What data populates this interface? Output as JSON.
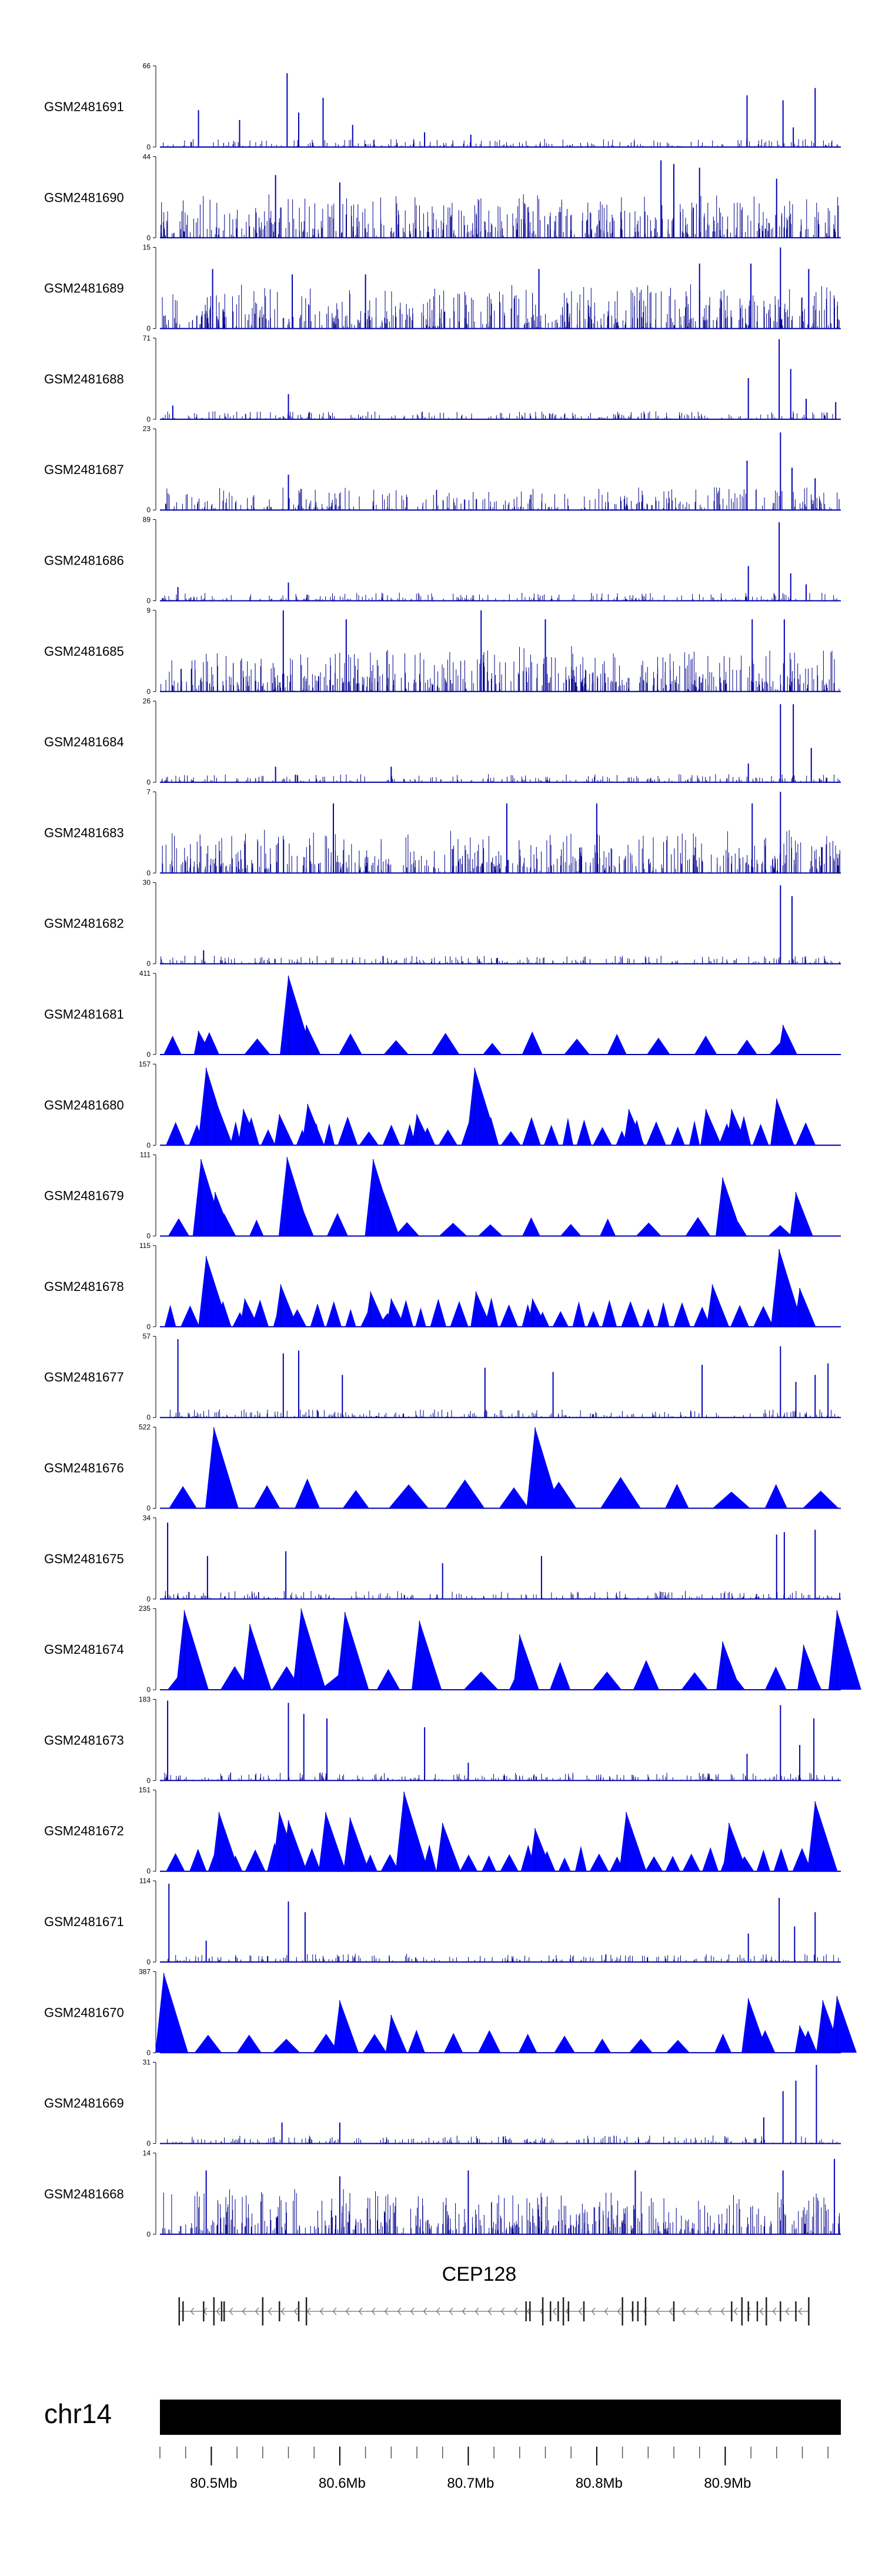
{
  "chart_data": {
    "type": "area",
    "title": "",
    "region": {
      "chromosome": "chr14",
      "start_mb": 80.46,
      "end_mb": 80.99
    },
    "series_color": "#0000ff",
    "tracks": [
      {
        "name": "GSM2481691",
        "ymax": 66,
        "ymin": 0,
        "style": "spiky",
        "density": "sparse",
        "peaks": [
          [
            80.49,
            30
          ],
          [
            80.522,
            22
          ],
          [
            80.559,
            60
          ],
          [
            80.568,
            28
          ],
          [
            80.587,
            40
          ],
          [
            80.61,
            18
          ],
          [
            80.666,
            12
          ],
          [
            80.702,
            10
          ],
          [
            80.917,
            42
          ],
          [
            80.945,
            38
          ],
          [
            80.953,
            16
          ],
          [
            80.97,
            48
          ]
        ]
      },
      {
        "name": "GSM2481690",
        "ymax": 44,
        "ymin": 0,
        "style": "spiky",
        "density": "dense",
        "peaks": [
          [
            80.55,
            34
          ],
          [
            80.6,
            30
          ],
          [
            80.85,
            42
          ],
          [
            80.86,
            40
          ],
          [
            80.88,
            38
          ],
          [
            80.94,
            32
          ]
        ]
      },
      {
        "name": "GSM2481689",
        "ymax": 15,
        "ymin": 0,
        "style": "spiky",
        "density": "dense",
        "peaks": [
          [
            80.501,
            11
          ],
          [
            80.563,
            10
          ],
          [
            80.62,
            10
          ],
          [
            80.755,
            11
          ],
          [
            80.88,
            12
          ],
          [
            80.92,
            12
          ],
          [
            80.943,
            15
          ],
          [
            80.965,
            11
          ]
        ]
      },
      {
        "name": "GSM2481688",
        "ymax": 71,
        "ymin": 0,
        "style": "spiky",
        "density": "sparse",
        "peaks": [
          [
            80.47,
            12
          ],
          [
            80.56,
            22
          ],
          [
            80.918,
            36
          ],
          [
            80.942,
            70
          ],
          [
            80.951,
            44
          ],
          [
            80.963,
            18
          ],
          [
            80.986,
            15
          ]
        ]
      },
      {
        "name": "GSM2481687",
        "ymax": 23,
        "ymin": 0,
        "style": "spiky",
        "density": "medium",
        "peaks": [
          [
            80.56,
            10
          ],
          [
            80.917,
            14
          ],
          [
            80.943,
            22
          ],
          [
            80.952,
            12
          ],
          [
            80.97,
            9
          ]
        ]
      },
      {
        "name": "GSM2481686",
        "ymax": 89,
        "ymin": 0,
        "style": "spiky",
        "density": "sparse",
        "peaks": [
          [
            80.474,
            15
          ],
          [
            80.56,
            20
          ],
          [
            80.918,
            38
          ],
          [
            80.942,
            86
          ],
          [
            80.951,
            30
          ],
          [
            80.963,
            18
          ]
        ]
      },
      {
        "name": "GSM2481685",
        "ymax": 9,
        "ymin": 0,
        "style": "spiky",
        "density": "dense",
        "peaks": [
          [
            80.556,
            9
          ],
          [
            80.605,
            8
          ],
          [
            80.71,
            9
          ],
          [
            80.76,
            8
          ],
          [
            80.921,
            8
          ],
          [
            80.946,
            8
          ]
        ]
      },
      {
        "name": "GSM2481684",
        "ymax": 26,
        "ymin": 0,
        "style": "spiky",
        "density": "sparse",
        "peaks": [
          [
            80.55,
            5
          ],
          [
            80.64,
            5
          ],
          [
            80.918,
            6
          ],
          [
            80.943,
            25
          ],
          [
            80.953,
            25
          ],
          [
            80.967,
            11
          ]
        ]
      },
      {
        "name": "GSM2481683",
        "ymax": 7,
        "ymin": 0,
        "style": "spiky",
        "density": "dense",
        "peaks": [
          [
            80.595,
            6
          ],
          [
            80.73,
            6
          ],
          [
            80.8,
            6
          ],
          [
            80.921,
            6
          ],
          [
            80.943,
            7
          ]
        ]
      },
      {
        "name": "GSM2481682",
        "ymax": 30,
        "ymin": 0,
        "style": "spiky",
        "density": "sparse",
        "peaks": [
          [
            80.494,
            5
          ],
          [
            80.943,
            29
          ],
          [
            80.952,
            25
          ]
        ]
      },
      {
        "name": "GSM2481681",
        "ymax": 411,
        "ymin": 0,
        "style": "triangles",
        "density": "medium",
        "peaks": [
          [
            80.49,
            120
          ],
          [
            80.56,
            400
          ],
          [
            80.574,
            150
          ],
          [
            80.945,
            150
          ]
        ]
      },
      {
        "name": "GSM2481680",
        "ymax": 157,
        "ymin": 0,
        "style": "triangles",
        "density": "dense",
        "peaks": [
          [
            80.496,
            150
          ],
          [
            80.503,
            90
          ],
          [
            80.525,
            70
          ],
          [
            80.553,
            60
          ],
          [
            80.575,
            80
          ],
          [
            80.66,
            60
          ],
          [
            80.705,
            150
          ],
          [
            80.825,
            70
          ],
          [
            80.885,
            70
          ],
          [
            80.905,
            70
          ],
          [
            80.94,
            90
          ]
        ]
      },
      {
        "name": "GSM2481679",
        "ymax": 111,
        "ymin": 0,
        "style": "triangles",
        "density": "medium",
        "peaks": [
          [
            80.492,
            105
          ],
          [
            80.503,
            60
          ],
          [
            80.559,
            108
          ],
          [
            80.567,
            55
          ],
          [
            80.626,
            105
          ],
          [
            80.632,
            70
          ],
          [
            80.898,
            80
          ],
          [
            80.955,
            60
          ]
        ]
      },
      {
        "name": "GSM2481678",
        "ymax": 115,
        "ymin": 0,
        "style": "triangles",
        "density": "dense",
        "peaks": [
          [
            80.496,
            100
          ],
          [
            80.5,
            40
          ],
          [
            80.526,
            40
          ],
          [
            80.554,
            60
          ],
          [
            80.624,
            50
          ],
          [
            80.64,
            40
          ],
          [
            80.706,
            50
          ],
          [
            80.75,
            40
          ],
          [
            80.89,
            60
          ],
          [
            80.942,
            110
          ],
          [
            80.958,
            55
          ]
        ]
      },
      {
        "name": "GSM2481677",
        "ymax": 57,
        "ymin": 0,
        "style": "spiky",
        "density": "sparse",
        "peaks": [
          [
            80.474,
            55
          ],
          [
            80.556,
            45
          ],
          [
            80.568,
            47
          ],
          [
            80.602,
            30
          ],
          [
            80.713,
            35
          ],
          [
            80.766,
            32
          ],
          [
            80.882,
            37
          ],
          [
            80.943,
            50
          ],
          [
            80.955,
            25
          ],
          [
            80.97,
            30
          ],
          [
            80.98,
            38
          ]
        ]
      },
      {
        "name": "GSM2481676",
        "ymax": 522,
        "ymin": 0,
        "style": "triangles",
        "density": "sparse",
        "peaks": [
          [
            80.502,
            520
          ],
          [
            80.752,
            520
          ]
        ]
      },
      {
        "name": "GSM2481675",
        "ymax": 34,
        "ymin": 0,
        "style": "spiky",
        "density": "sparse",
        "peaks": [
          [
            80.466,
            32
          ],
          [
            80.497,
            18
          ],
          [
            80.558,
            20
          ],
          [
            80.68,
            15
          ],
          [
            80.757,
            18
          ],
          [
            80.94,
            27
          ],
          [
            80.946,
            28
          ],
          [
            80.97,
            29
          ]
        ]
      },
      {
        "name": "GSM2481674",
        "ymax": 235,
        "ymin": 0,
        "style": "triangles",
        "density": "sparse",
        "peaks": [
          [
            80.479,
            230
          ],
          [
            80.53,
            190
          ],
          [
            80.57,
            235
          ],
          [
            80.604,
            225
          ],
          [
            80.662,
            200
          ],
          [
            80.74,
            160
          ],
          [
            80.898,
            140
          ],
          [
            80.961,
            130
          ],
          [
            80.987,
            230
          ]
        ]
      },
      {
        "name": "GSM2481673",
        "ymax": 183,
        "ymin": 0,
        "style": "spiky",
        "density": "sparse",
        "peaks": [
          [
            80.466,
            180
          ],
          [
            80.56,
            175
          ],
          [
            80.572,
            150
          ],
          [
            80.59,
            140
          ],
          [
            80.666,
            120
          ],
          [
            80.7,
            40
          ],
          [
            80.917,
            60
          ],
          [
            80.943,
            170
          ],
          [
            80.958,
            80
          ],
          [
            80.969,
            140
          ]
        ]
      },
      {
        "name": "GSM2481672",
        "ymax": 151,
        "ymin": 0,
        "style": "triangles",
        "density": "dense",
        "peaks": [
          [
            80.506,
            110
          ],
          [
            80.553,
            110
          ],
          [
            80.56,
            95
          ],
          [
            80.589,
            110
          ],
          [
            80.608,
            100
          ],
          [
            80.65,
            148
          ],
          [
            80.68,
            90
          ],
          [
            80.752,
            80
          ],
          [
            80.823,
            110
          ],
          [
            80.903,
            90
          ],
          [
            80.97,
            130
          ]
        ]
      },
      {
        "name": "GSM2481671",
        "ymax": 114,
        "ymin": 0,
        "style": "spiky",
        "density": "sparse",
        "peaks": [
          [
            80.467,
            110
          ],
          [
            80.496,
            30
          ],
          [
            80.56,
            85
          ],
          [
            80.573,
            70
          ],
          [
            80.918,
            40
          ],
          [
            80.942,
            90
          ],
          [
            80.954,
            50
          ],
          [
            80.97,
            70
          ]
        ]
      },
      {
        "name": "GSM2481670",
        "ymax": 387,
        "ymin": 0,
        "style": "triangles",
        "density": "medium",
        "peaks": [
          [
            80.463,
            380
          ],
          [
            80.6,
            250
          ],
          [
            80.64,
            180
          ],
          [
            80.918,
            260
          ],
          [
            80.958,
            130
          ],
          [
            80.976,
            250
          ],
          [
            80.987,
            270
          ]
        ]
      },
      {
        "name": "GSM2481669",
        "ymax": 31,
        "ymin": 0,
        "style": "spiky",
        "density": "sparse",
        "peaks": [
          [
            80.555,
            8
          ],
          [
            80.6,
            8
          ],
          [
            80.93,
            10
          ],
          [
            80.945,
            20
          ],
          [
            80.955,
            24
          ],
          [
            80.971,
            30
          ]
        ]
      },
      {
        "name": "GSM2481668",
        "ymax": 14,
        "ymin": 0,
        "style": "spiky",
        "density": "dense",
        "peaks": [
          [
            80.496,
            11
          ],
          [
            80.6,
            10
          ],
          [
            80.7,
            11
          ],
          [
            80.83,
            11
          ],
          [
            80.945,
            11
          ],
          [
            80.985,
            13
          ]
        ]
      }
    ],
    "gene": {
      "name": "CEP128",
      "strand": "-",
      "start_mb": 80.475,
      "end_mb": 80.965
    },
    "chromosome_label": "chr14",
    "x_ticks": [
      {
        "label": "80.5Mb",
        "value": 80.5
      },
      {
        "label": "80.6Mb",
        "value": 80.6
      },
      {
        "label": "80.7Mb",
        "value": 80.7
      },
      {
        "label": "80.8Mb",
        "value": 80.8
      },
      {
        "label": "80.9Mb",
        "value": 80.9
      }
    ],
    "minor_tick_step_mb": 0.02,
    "grid": false,
    "legend": "none"
  }
}
